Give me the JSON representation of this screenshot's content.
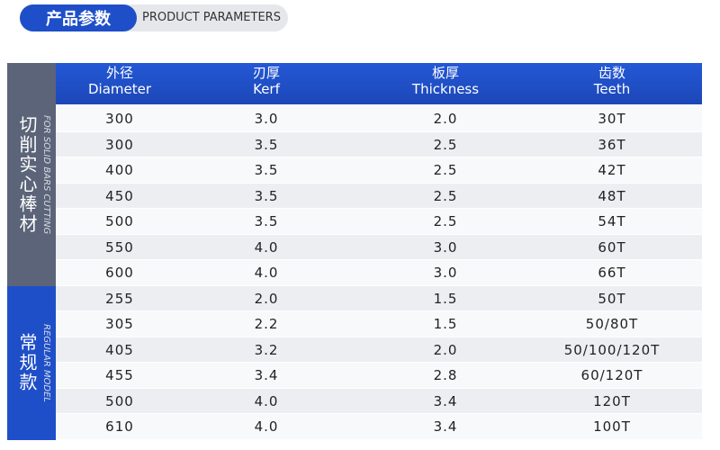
{
  "header": {
    "title": "产品参数",
    "subtitle": "PRODUCT PARAMETERS"
  },
  "table": {
    "columns": [
      {
        "zh": "外径",
        "en": "Diameter"
      },
      {
        "zh": "刃厚",
        "en": "Kerf"
      },
      {
        "zh": "板厚",
        "en": "Thickness"
      },
      {
        "zh": "齿数",
        "en": "Teeth"
      }
    ],
    "groups": [
      {
        "label": "切削实心棒材",
        "label_en": "FOR SOLID BARS CUTTING",
        "rows": [
          [
            "300",
            "3.0",
            "2.0",
            "30T"
          ],
          [
            "300",
            "3.5",
            "2.5",
            "36T"
          ],
          [
            "400",
            "3.5",
            "2.5",
            "42T"
          ],
          [
            "450",
            "3.5",
            "2.5",
            "48T"
          ],
          [
            "500",
            "3.5",
            "2.5",
            "54T"
          ],
          [
            "550",
            "4.0",
            "3.0",
            "60T"
          ],
          [
            "600",
            "4.0",
            "3.0",
            "66T"
          ]
        ]
      },
      {
        "label": "常规款",
        "label_en": "REGULAR MODEL",
        "rows": [
          [
            "255",
            "2.0",
            "1.5",
            "50T"
          ],
          [
            "305",
            "2.2",
            "1.5",
            "50/80T"
          ],
          [
            "405",
            "3.2",
            "2.0",
            "50/100/120T"
          ],
          [
            "455",
            "3.4",
            "2.8",
            "60/120T"
          ],
          [
            "500",
            "4.0",
            "3.4",
            "120T"
          ],
          [
            "610",
            "4.0",
            "3.4",
            "100T"
          ]
        ]
      }
    ]
  }
}
